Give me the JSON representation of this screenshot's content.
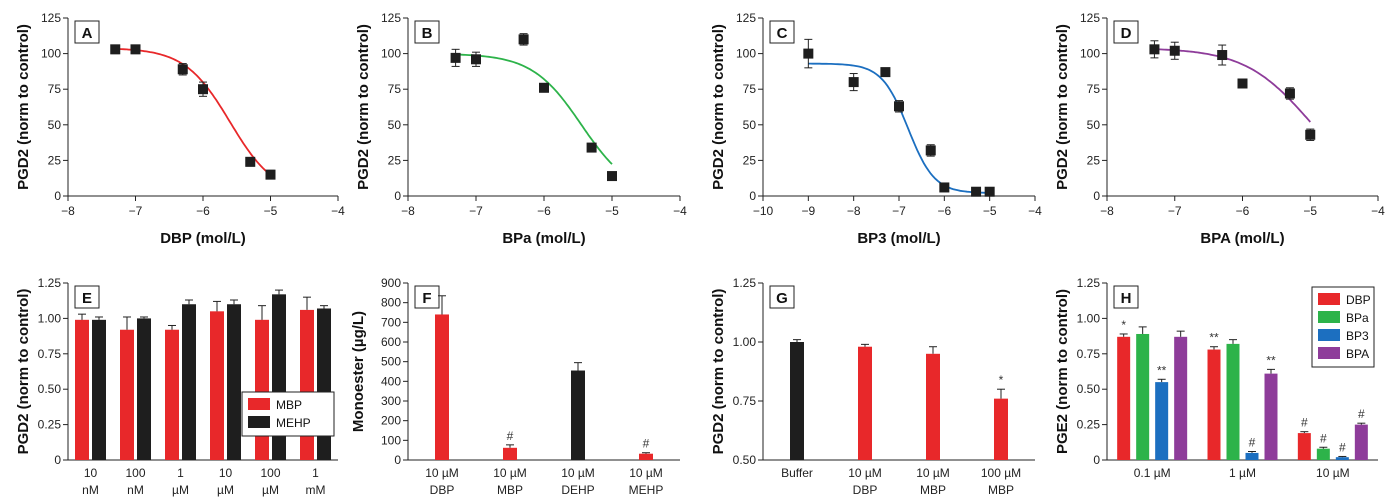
{
  "chart_data": [
    {
      "panel": "A",
      "type": "scatter",
      "xlabel": "DBP (mol/L)",
      "ylabel": "PGD2 (norm to control)",
      "xlim": [
        -8,
        -4
      ],
      "ylim": [
        0,
        125
      ],
      "xticks": [
        -8,
        -7,
        -6,
        -5,
        -4
      ],
      "xtick_labels": [
        "−8",
        "−7",
        "−6",
        "−5",
        "−4"
      ],
      "yticks": [
        0,
        25,
        50,
        75,
        100,
        125
      ],
      "ytick_labels": [
        "0",
        "25",
        "50",
        "75",
        "100",
        "125"
      ],
      "curve_color": "#e8282a",
      "x": [
        -7.3,
        -7.0,
        -6.3,
        -6.0,
        -5.3,
        -5.0
      ],
      "y": [
        103,
        103,
        89,
        75,
        24,
        15
      ],
      "err": [
        3,
        3,
        4,
        5,
        3,
        3
      ],
      "curve": {
        "top": 104,
        "bottom": 0,
        "logec50": -5.6,
        "hill": 1.3
      }
    },
    {
      "panel": "B",
      "type": "scatter",
      "xlabel": "BPa (mol/L)",
      "ylabel": "PGD2 (norm to control)",
      "xlim": [
        -8,
        -4
      ],
      "ylim": [
        0,
        125
      ],
      "xticks": [
        -8,
        -7,
        -6,
        -5,
        -4
      ],
      "xtick_labels": [
        "−8",
        "−7",
        "−6",
        "−5",
        "−4"
      ],
      "yticks": [
        0,
        25,
        50,
        75,
        100,
        125
      ],
      "ytick_labels": [
        "0",
        "25",
        "50",
        "75",
        "100",
        "125"
      ],
      "curve_color": "#2db34a",
      "x": [
        -7.3,
        -7.0,
        -6.3,
        -6.0,
        -5.3,
        -5.0
      ],
      "y": [
        97,
        96,
        110,
        76,
        34,
        14
      ],
      "err": [
        6,
        5,
        4,
        3,
        2,
        2
      ],
      "curve": {
        "top": 100,
        "bottom": 0,
        "logec50": -5.45,
        "hill": 1.2
      }
    },
    {
      "panel": "C",
      "type": "scatter",
      "xlabel": "BP3 (mol/L)",
      "ylabel": "PGD2 (norm to control)",
      "xlim": [
        -10,
        -4
      ],
      "ylim": [
        0,
        125
      ],
      "xticks": [
        -10,
        -9,
        -8,
        -7,
        -6,
        -5,
        -4
      ],
      "xtick_labels": [
        "−10",
        "−9",
        "−8",
        "−7",
        "−6",
        "−5",
        "−4"
      ],
      "yticks": [
        0,
        25,
        50,
        75,
        100,
        125
      ],
      "ytick_labels": [
        "0",
        "25",
        "50",
        "75",
        "100",
        "125"
      ],
      "curve_color": "#1c6fc0",
      "x": [
        -9.0,
        -8.0,
        -7.3,
        -7.0,
        -6.3,
        -6.0,
        -5.3,
        -5.0
      ],
      "y": [
        100,
        80,
        87,
        63,
        32,
        6,
        3,
        3
      ],
      "err": [
        10,
        6,
        2,
        4,
        4,
        2,
        1,
        1
      ],
      "curve": {
        "top": 93,
        "bottom": 2,
        "logec50": -6.8,
        "hill": 1.5
      }
    },
    {
      "panel": "D",
      "type": "scatter",
      "xlabel": "BPA (mol/L)",
      "ylabel": "PGD2 (norm to control)",
      "xlim": [
        -8,
        -4
      ],
      "ylim": [
        0,
        125
      ],
      "xticks": [
        -8,
        -7,
        -6,
        -5,
        -4
      ],
      "xtick_labels": [
        "−8",
        "−7",
        "−6",
        "−5",
        "−4"
      ],
      "yticks": [
        0,
        25,
        50,
        75,
        100,
        125
      ],
      "ytick_labels": [
        "0",
        "25",
        "50",
        "75",
        "100",
        "125"
      ],
      "curve_color": "#8e3c9a",
      "x": [
        -7.3,
        -7.0,
        -6.3,
        -6.0,
        -5.3,
        -5.0
      ],
      "y": [
        103,
        102,
        99,
        79,
        72,
        43
      ],
      "err": [
        6,
        6,
        7,
        2,
        4,
        4
      ],
      "curve": {
        "top": 104,
        "bottom": 0,
        "logec50": -5.0,
        "hill": 0.9
      }
    },
    {
      "panel": "E",
      "type": "bar",
      "ylabel": "PGD2 (norm to control)",
      "ylim": [
        0,
        1.25
      ],
      "yticks": [
        0,
        0.25,
        0.5,
        0.75,
        1.0,
        1.25
      ],
      "ytick_labels": [
        "0",
        "0.25",
        "0.50",
        "0.75",
        "1.00",
        "1.25"
      ],
      "categories": [
        [
          "10",
          "nM"
        ],
        [
          "100",
          "nM"
        ],
        [
          "1",
          "µM"
        ],
        [
          "10",
          "µM"
        ],
        [
          "100",
          "µM"
        ],
        [
          "1",
          "mM"
        ]
      ],
      "series": [
        {
          "name": "MBP",
          "color": "#e8282a",
          "values": [
            0.99,
            0.92,
            0.92,
            1.05,
            0.99,
            1.06
          ],
          "err": [
            0.04,
            0.09,
            0.03,
            0.07,
            0.1,
            0.09
          ]
        },
        {
          "name": "MEHP",
          "color": "#1e1e1e",
          "values": [
            0.99,
            1.0,
            1.1,
            1.1,
            1.17,
            1.07
          ],
          "err": [
            0.02,
            0.01,
            0.03,
            0.03,
            0.03,
            0.02
          ]
        }
      ],
      "legend_position": "bottom-right"
    },
    {
      "panel": "F",
      "type": "bar",
      "ylabel": "Monoester (µg/L)",
      "ylim": [
        0,
        900
      ],
      "yticks": [
        0,
        100,
        200,
        300,
        400,
        500,
        600,
        700,
        800,
        900
      ],
      "ytick_labels": [
        "0",
        "100",
        "200",
        "300",
        "400",
        "500",
        "600",
        "700",
        "800",
        "900"
      ],
      "categories": [
        [
          "10 µM",
          "DBP"
        ],
        [
          "10 µM",
          "MBP"
        ],
        [
          "10 µM",
          "DEHP"
        ],
        [
          "10 µM",
          "MEHP"
        ]
      ],
      "values": [
        740,
        62,
        455,
        32
      ],
      "err": [
        95,
        15,
        40,
        5
      ],
      "colors": [
        "#e8282a",
        "#e8282a",
        "#1e1e1e",
        "#e8282a"
      ],
      "annotations": [
        "",
        "#",
        "",
        "#"
      ]
    },
    {
      "panel": "G",
      "type": "bar",
      "ylabel": "PGD2 (norm to control)",
      "ylim": [
        0.5,
        1.25
      ],
      "yticks": [
        0.5,
        0.75,
        1.0,
        1.25
      ],
      "ytick_labels": [
        "0.50",
        "0.75",
        "1.00",
        "1.25"
      ],
      "categories": [
        [
          "Buffer",
          ""
        ],
        [
          "10 µM",
          "DBP"
        ],
        [
          "10 µM",
          "MBP"
        ],
        [
          "100 µM",
          "MBP"
        ]
      ],
      "values": [
        1.0,
        0.98,
        0.95,
        0.76
      ],
      "err": [
        0.01,
        0.01,
        0.03,
        0.04
      ],
      "colors": [
        "#1e1e1e",
        "#e8282a",
        "#e8282a",
        "#e8282a"
      ],
      "annotations": [
        "",
        "",
        "",
        "*"
      ]
    },
    {
      "panel": "H",
      "type": "bar",
      "ylabel": "PGE2 (norm to control)",
      "ylim": [
        0,
        1.25
      ],
      "yticks": [
        0,
        0.25,
        0.5,
        0.75,
        1.0,
        1.25
      ],
      "ytick_labels": [
        "0",
        "0.25",
        "0.50",
        "0.75",
        "1.00",
        "1.25"
      ],
      "categories": [
        "0.1 µM",
        "1 µM",
        "10 µM"
      ],
      "series": [
        {
          "name": "DBP",
          "color": "#e8282a",
          "values": [
            0.87,
            0.78,
            0.19
          ],
          "err": [
            0.02,
            0.02,
            0.01
          ],
          "annotations": [
            "*",
            "**",
            "#"
          ]
        },
        {
          "name": "BPa",
          "color": "#2db34a",
          "values": [
            0.89,
            0.82,
            0.08
          ],
          "err": [
            0.05,
            0.03,
            0.01
          ],
          "annotations": [
            "",
            "",
            "#"
          ]
        },
        {
          "name": "BP3",
          "color": "#1c6fc0",
          "values": [
            0.55,
            0.05,
            0.02
          ],
          "err": [
            0.02,
            0.01,
            0.005
          ],
          "annotations": [
            "**",
            "#",
            "#"
          ]
        },
        {
          "name": "BPA",
          "color": "#8e3c9a",
          "values": [
            0.87,
            0.61,
            0.25
          ],
          "err": [
            0.04,
            0.03,
            0.01
          ],
          "annotations": [
            "",
            "**",
            "#"
          ]
        }
      ],
      "legend_position": "top-right"
    }
  ]
}
